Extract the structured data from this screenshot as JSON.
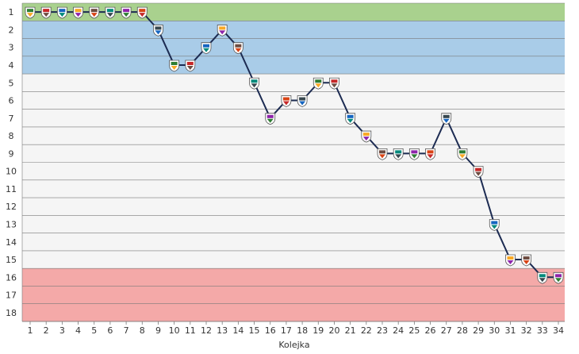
{
  "chart_data": {
    "type": "line",
    "title": "",
    "xlabel": "Kolejka",
    "ylabel": "",
    "x": [
      1,
      2,
      3,
      4,
      5,
      6,
      7,
      8,
      9,
      10,
      11,
      12,
      13,
      14,
      15,
      16,
      17,
      18,
      19,
      20,
      21,
      22,
      23,
      24,
      25,
      26,
      27,
      28,
      29,
      30,
      31,
      32,
      33,
      34
    ],
    "x_ticks": [
      "1",
      "2",
      "3",
      "4",
      "5",
      "6",
      "7",
      "8",
      "9",
      "10",
      "11",
      "12",
      "13",
      "14",
      "15",
      "16",
      "17",
      "18",
      "19",
      "20",
      "21",
      "22",
      "23",
      "24",
      "25",
      "26",
      "27",
      "28",
      "29",
      "30",
      "31",
      "32",
      "33",
      "34"
    ],
    "y_ticks": [
      "1",
      "2",
      "3",
      "4",
      "5",
      "6",
      "7",
      "8",
      "9",
      "10",
      "11",
      "12",
      "13",
      "14",
      "15",
      "16",
      "17",
      "18"
    ],
    "ylim": [
      1,
      18
    ],
    "y_inverted": true,
    "series": [
      {
        "values": [
          1,
          1,
          1,
          1,
          1,
          1,
          1,
          1,
          2,
          4,
          4,
          3,
          2,
          3,
          5,
          7,
          6,
          6,
          5,
          5,
          7,
          8,
          9,
          9,
          9,
          9,
          7,
          9,
          10,
          13,
          15,
          15,
          16,
          16
        ],
        "color": "#1c2b52"
      }
    ],
    "bands": [
      {
        "from": 1,
        "to": 1,
        "color": "#a9d18e"
      },
      {
        "from": 2,
        "to": 4,
        "color": "#a9cce8"
      },
      {
        "from": 5,
        "to": 15,
        "color": "#f5f5f5"
      },
      {
        "from": 16,
        "to": 18,
        "color": "#f4a9a8"
      }
    ],
    "grid": true
  }
}
